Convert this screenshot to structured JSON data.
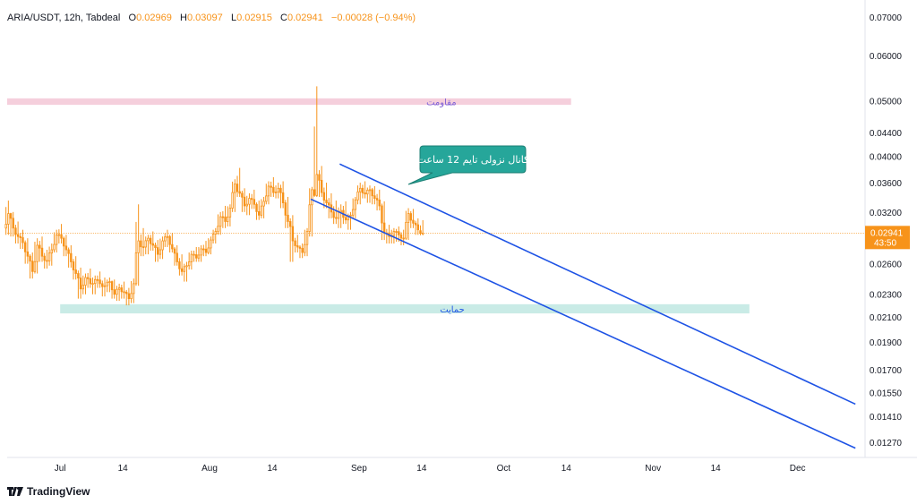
{
  "header": {
    "symbol": "ARIA/USDT, 12h, Tabdeal",
    "open_label": "O",
    "open": "0.02969",
    "high_label": "H",
    "high": "0.03097",
    "low_label": "L",
    "low": "0.02915",
    "close_label": "C",
    "close": "0.02941",
    "change": "−0.00028 (−0.94%)"
  },
  "price_badge": {
    "price": "0.02941",
    "countdown": "43:50"
  },
  "branding": {
    "logo_text": "TradingView"
  },
  "colors": {
    "up": "#f7931a",
    "down": "#f7931a",
    "channel": "#1e53e5",
    "resistance_zone": "#f5cfdc",
    "support_zone": "#c9ebe6",
    "callout_bg": "#26a69a",
    "price_line": "#f7931a",
    "axis_text": "#131722"
  },
  "chart_data": {
    "type": "candlestick",
    "y_scale": "log",
    "y_ticks": [
      "0.07000",
      "0.06000",
      "0.05000",
      "0.04400",
      "0.04000",
      "0.03600",
      "0.03200",
      "0.02600",
      "0.02300",
      "0.02100",
      "0.01900",
      "0.01700",
      "0.01550",
      "0.01410",
      "0.01270"
    ],
    "x_ticks": [
      "Jul",
      "14",
      "Aug",
      "14",
      "Sep",
      "14",
      "Oct",
      "14",
      "Nov",
      "14",
      "Dec"
    ],
    "x_range": [
      "2024-06-20",
      "2024-12-15"
    ],
    "current_price": 0.02941,
    "annotations": {
      "resistance_zone": {
        "label": "مقاومت",
        "from": "2024-06-20",
        "to": "2024-10-15",
        "low": 0.0492,
        "high": 0.0505
      },
      "support_zone": {
        "label": "حمایت",
        "from": "2024-07-01",
        "to": "2024-11-21",
        "low": 0.0213,
        "high": 0.0221
      },
      "channel_callout": {
        "text": "کانال نزولی تایم 12 ساعت"
      },
      "descending_channel": {
        "upper": [
          [
            "2024-08-28",
            0.0388
          ],
          [
            "2024-12-13",
            0.0148
          ]
        ],
        "lower": [
          [
            "2024-08-22",
            0.0337
          ],
          [
            "2024-12-13",
            0.0124
          ]
        ]
      }
    },
    "ohlc_daily": [
      [
        "2024-06-20",
        0.03,
        0.0335,
        0.0292,
        0.0318
      ],
      [
        "2024-06-21",
        0.0318,
        0.032,
        0.029,
        0.03
      ],
      [
        "2024-06-22",
        0.03,
        0.0308,
        0.0282,
        0.029
      ],
      [
        "2024-06-23",
        0.029,
        0.0298,
        0.0276,
        0.0283
      ],
      [
        "2024-06-24",
        0.0283,
        0.0288,
        0.026,
        0.0268
      ],
      [
        "2024-06-25",
        0.0268,
        0.0272,
        0.0245,
        0.0252
      ],
      [
        "2024-06-26",
        0.0252,
        0.0288,
        0.025,
        0.028
      ],
      [
        "2024-06-27",
        0.028,
        0.029,
        0.0262,
        0.0268
      ],
      [
        "2024-06-28",
        0.0268,
        0.0275,
        0.0255,
        0.0263
      ],
      [
        "2024-06-29",
        0.0263,
        0.0282,
        0.0258,
        0.0275
      ],
      [
        "2024-06-30",
        0.0275,
        0.0298,
        0.0272,
        0.0292
      ],
      [
        "2024-07-01",
        0.0292,
        0.0305,
        0.0282,
        0.0288
      ],
      [
        "2024-07-02",
        0.0288,
        0.0292,
        0.0268,
        0.0275
      ],
      [
        "2024-07-03",
        0.0275,
        0.028,
        0.0256,
        0.0262
      ],
      [
        "2024-07-04",
        0.0262,
        0.0268,
        0.0244,
        0.025
      ],
      [
        "2024-07-05",
        0.025,
        0.0256,
        0.0226,
        0.0235
      ],
      [
        "2024-07-06",
        0.0235,
        0.025,
        0.023,
        0.0246
      ],
      [
        "2024-07-07",
        0.0246,
        0.0255,
        0.0236,
        0.024
      ],
      [
        "2024-07-08",
        0.024,
        0.0248,
        0.023,
        0.0244
      ],
      [
        "2024-07-09",
        0.0244,
        0.0252,
        0.0236,
        0.024
      ],
      [
        "2024-07-10",
        0.024,
        0.0246,
        0.0228,
        0.0238
      ],
      [
        "2024-07-11",
        0.0238,
        0.0246,
        0.0232,
        0.0242
      ],
      [
        "2024-07-12",
        0.0242,
        0.0244,
        0.0226,
        0.023
      ],
      [
        "2024-07-13",
        0.023,
        0.024,
        0.0224,
        0.0236
      ],
      [
        "2024-07-14",
        0.0236,
        0.0242,
        0.0226,
        0.0232
      ],
      [
        "2024-07-15",
        0.0232,
        0.0236,
        0.022,
        0.0226
      ],
      [
        "2024-07-16",
        0.0226,
        0.0245,
        0.0222,
        0.024
      ],
      [
        "2024-07-17",
        0.024,
        0.033,
        0.0238,
        0.0285
      ],
      [
        "2024-07-18",
        0.0285,
        0.03,
        0.0268,
        0.0278
      ],
      [
        "2024-07-19",
        0.0278,
        0.0292,
        0.027,
        0.0288
      ],
      [
        "2024-07-20",
        0.0288,
        0.0296,
        0.0274,
        0.028
      ],
      [
        "2024-07-21",
        0.028,
        0.0286,
        0.0262,
        0.027
      ],
      [
        "2024-07-22",
        0.027,
        0.029,
        0.0265,
        0.0285
      ],
      [
        "2024-07-23",
        0.0285,
        0.0298,
        0.0278,
        0.029
      ],
      [
        "2024-07-24",
        0.029,
        0.0294,
        0.0272,
        0.0276
      ],
      [
        "2024-07-25",
        0.0276,
        0.028,
        0.0258,
        0.0262
      ],
      [
        "2024-07-26",
        0.0262,
        0.027,
        0.0248,
        0.0252
      ],
      [
        "2024-07-27",
        0.0252,
        0.0262,
        0.0242,
        0.0258
      ],
      [
        "2024-07-28",
        0.0258,
        0.0274,
        0.0254,
        0.027
      ],
      [
        "2024-07-29",
        0.027,
        0.0278,
        0.0262,
        0.0266
      ],
      [
        "2024-07-30",
        0.0266,
        0.028,
        0.0262,
        0.0276
      ],
      [
        "2024-07-31",
        0.0276,
        0.0285,
        0.0268,
        0.0272
      ],
      [
        "2024-08-01",
        0.0272,
        0.029,
        0.027,
        0.0286
      ],
      [
        "2024-08-02",
        0.0286,
        0.03,
        0.0282,
        0.0296
      ],
      [
        "2024-08-03",
        0.0296,
        0.032,
        0.0292,
        0.0314
      ],
      [
        "2024-08-04",
        0.0314,
        0.0328,
        0.03,
        0.0308
      ],
      [
        "2024-08-05",
        0.0308,
        0.033,
        0.0302,
        0.0325
      ],
      [
        "2024-08-06",
        0.0325,
        0.0365,
        0.032,
        0.0358
      ],
      [
        "2024-08-07",
        0.0358,
        0.0382,
        0.034,
        0.0345
      ],
      [
        "2024-08-08",
        0.0345,
        0.0352,
        0.032,
        0.0328
      ],
      [
        "2024-08-09",
        0.0328,
        0.0345,
        0.0316,
        0.0338
      ],
      [
        "2024-08-10",
        0.0338,
        0.035,
        0.0324,
        0.033
      ],
      [
        "2024-08-11",
        0.033,
        0.0335,
        0.031,
        0.0316
      ],
      [
        "2024-08-12",
        0.0316,
        0.034,
        0.0312,
        0.0334
      ],
      [
        "2024-08-13",
        0.0334,
        0.0362,
        0.033,
        0.0355
      ],
      [
        "2024-08-14",
        0.0355,
        0.0368,
        0.034,
        0.0346
      ],
      [
        "2024-08-15",
        0.0346,
        0.036,
        0.0338,
        0.0352
      ],
      [
        "2024-08-16",
        0.0352,
        0.0362,
        0.0325,
        0.0332
      ],
      [
        "2024-08-17",
        0.0332,
        0.034,
        0.03,
        0.0308
      ],
      [
        "2024-08-18",
        0.0308,
        0.0316,
        0.0262,
        0.0285
      ],
      [
        "2024-08-19",
        0.0285,
        0.0292,
        0.0272,
        0.0278
      ],
      [
        "2024-08-20",
        0.0278,
        0.0282,
        0.0266,
        0.0272
      ],
      [
        "2024-08-21",
        0.0272,
        0.03,
        0.0268,
        0.0296
      ],
      [
        "2024-08-22",
        0.0296,
        0.0354,
        0.029,
        0.035
      ],
      [
        "2024-08-23",
        0.035,
        0.053,
        0.034,
        0.0372
      ],
      [
        "2024-08-24",
        0.0372,
        0.0385,
        0.034,
        0.0346
      ],
      [
        "2024-08-25",
        0.0346,
        0.036,
        0.0325,
        0.0332
      ],
      [
        "2024-08-26",
        0.0332,
        0.0345,
        0.0312,
        0.032
      ],
      [
        "2024-08-27",
        0.032,
        0.0335,
        0.0305,
        0.0312
      ],
      [
        "2024-08-28",
        0.0312,
        0.033,
        0.03,
        0.0322
      ],
      [
        "2024-08-29",
        0.0322,
        0.0334,
        0.0305,
        0.031
      ],
      [
        "2024-08-30",
        0.031,
        0.032,
        0.0298,
        0.0316
      ],
      [
        "2024-08-31",
        0.0316,
        0.034,
        0.0312,
        0.0336
      ],
      [
        "2024-09-01",
        0.0336,
        0.036,
        0.033,
        0.0352
      ],
      [
        "2024-09-02",
        0.0352,
        0.0362,
        0.0338,
        0.0344
      ],
      [
        "2024-09-03",
        0.0344,
        0.0356,
        0.0332,
        0.035
      ],
      [
        "2024-09-04",
        0.035,
        0.0355,
        0.033,
        0.0338
      ],
      [
        "2024-09-05",
        0.0338,
        0.035,
        0.0322,
        0.0328
      ],
      [
        "2024-09-06",
        0.0328,
        0.0334,
        0.0286,
        0.0294
      ],
      [
        "2024-09-07",
        0.0294,
        0.0304,
        0.0282,
        0.029
      ],
      [
        "2024-09-08",
        0.029,
        0.03,
        0.0282,
        0.0296
      ],
      [
        "2024-09-09",
        0.0296,
        0.0302,
        0.0284,
        0.0292
      ],
      [
        "2024-09-10",
        0.0292,
        0.0298,
        0.028,
        0.0288
      ],
      [
        "2024-09-11",
        0.0288,
        0.0325,
        0.0286,
        0.0318
      ],
      [
        "2024-09-12",
        0.0318,
        0.0324,
        0.03,
        0.0306
      ],
      [
        "2024-09-13",
        0.0306,
        0.0312,
        0.0292,
        0.0298
      ],
      [
        "2024-09-14",
        0.02969,
        0.03097,
        0.02915,
        0.02941
      ]
    ]
  }
}
